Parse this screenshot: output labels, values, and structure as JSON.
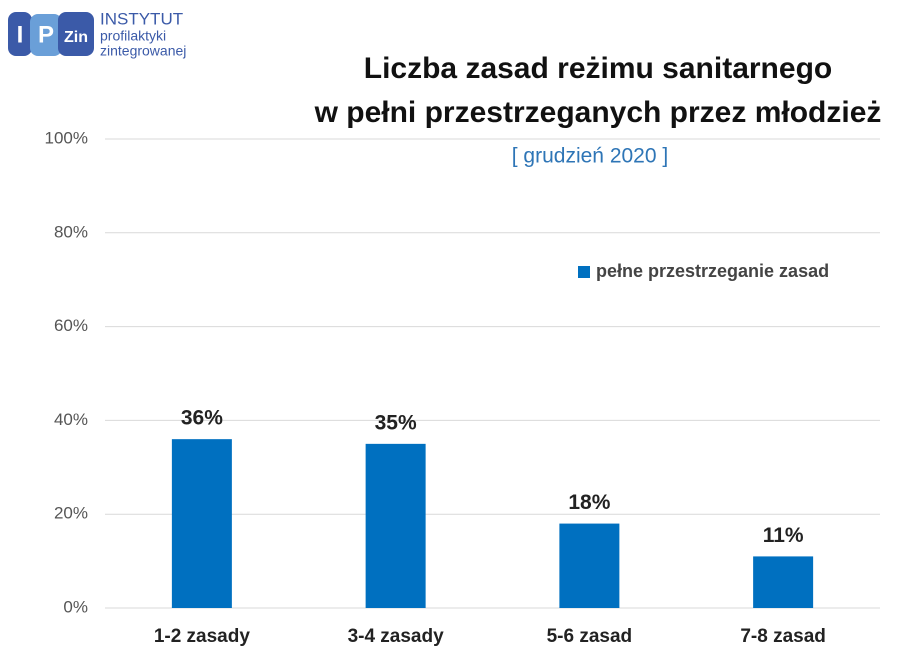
{
  "logo": {
    "letters": [
      "I",
      "P",
      "Zin"
    ],
    "lines": [
      "INSTYTUT",
      "profilaktyki",
      "zintegrowanej"
    ]
  },
  "chart_data": {
    "type": "bar",
    "title": [
      "Liczba zasad reżimu sanitarnego",
      "w pełni przestrzeganych przez młodzież"
    ],
    "subtitle": "[ grudzień 2020 ]",
    "categories": [
      "1-2 zasady",
      "3-4 zasady",
      "5-6 zasad",
      "7-8 zasad"
    ],
    "series": [
      {
        "name": "pełne przestrzeganie zasad",
        "color": "#0070c0",
        "values": [
          36,
          35,
          18,
          11
        ],
        "value_labels": [
          "36%",
          "35%",
          "18%",
          "11%"
        ]
      }
    ],
    "ylim": [
      0,
      100
    ],
    "yticks": [
      {
        "value": 0,
        "label": "0%"
      },
      {
        "value": 20,
        "label": "20%"
      },
      {
        "value": 40,
        "label": "40%"
      },
      {
        "value": 60,
        "label": "60%"
      },
      {
        "value": 80,
        "label": "80%"
      },
      {
        "value": 100,
        "label": "100%"
      }
    ],
    "grid": true,
    "legend": "upper right"
  }
}
